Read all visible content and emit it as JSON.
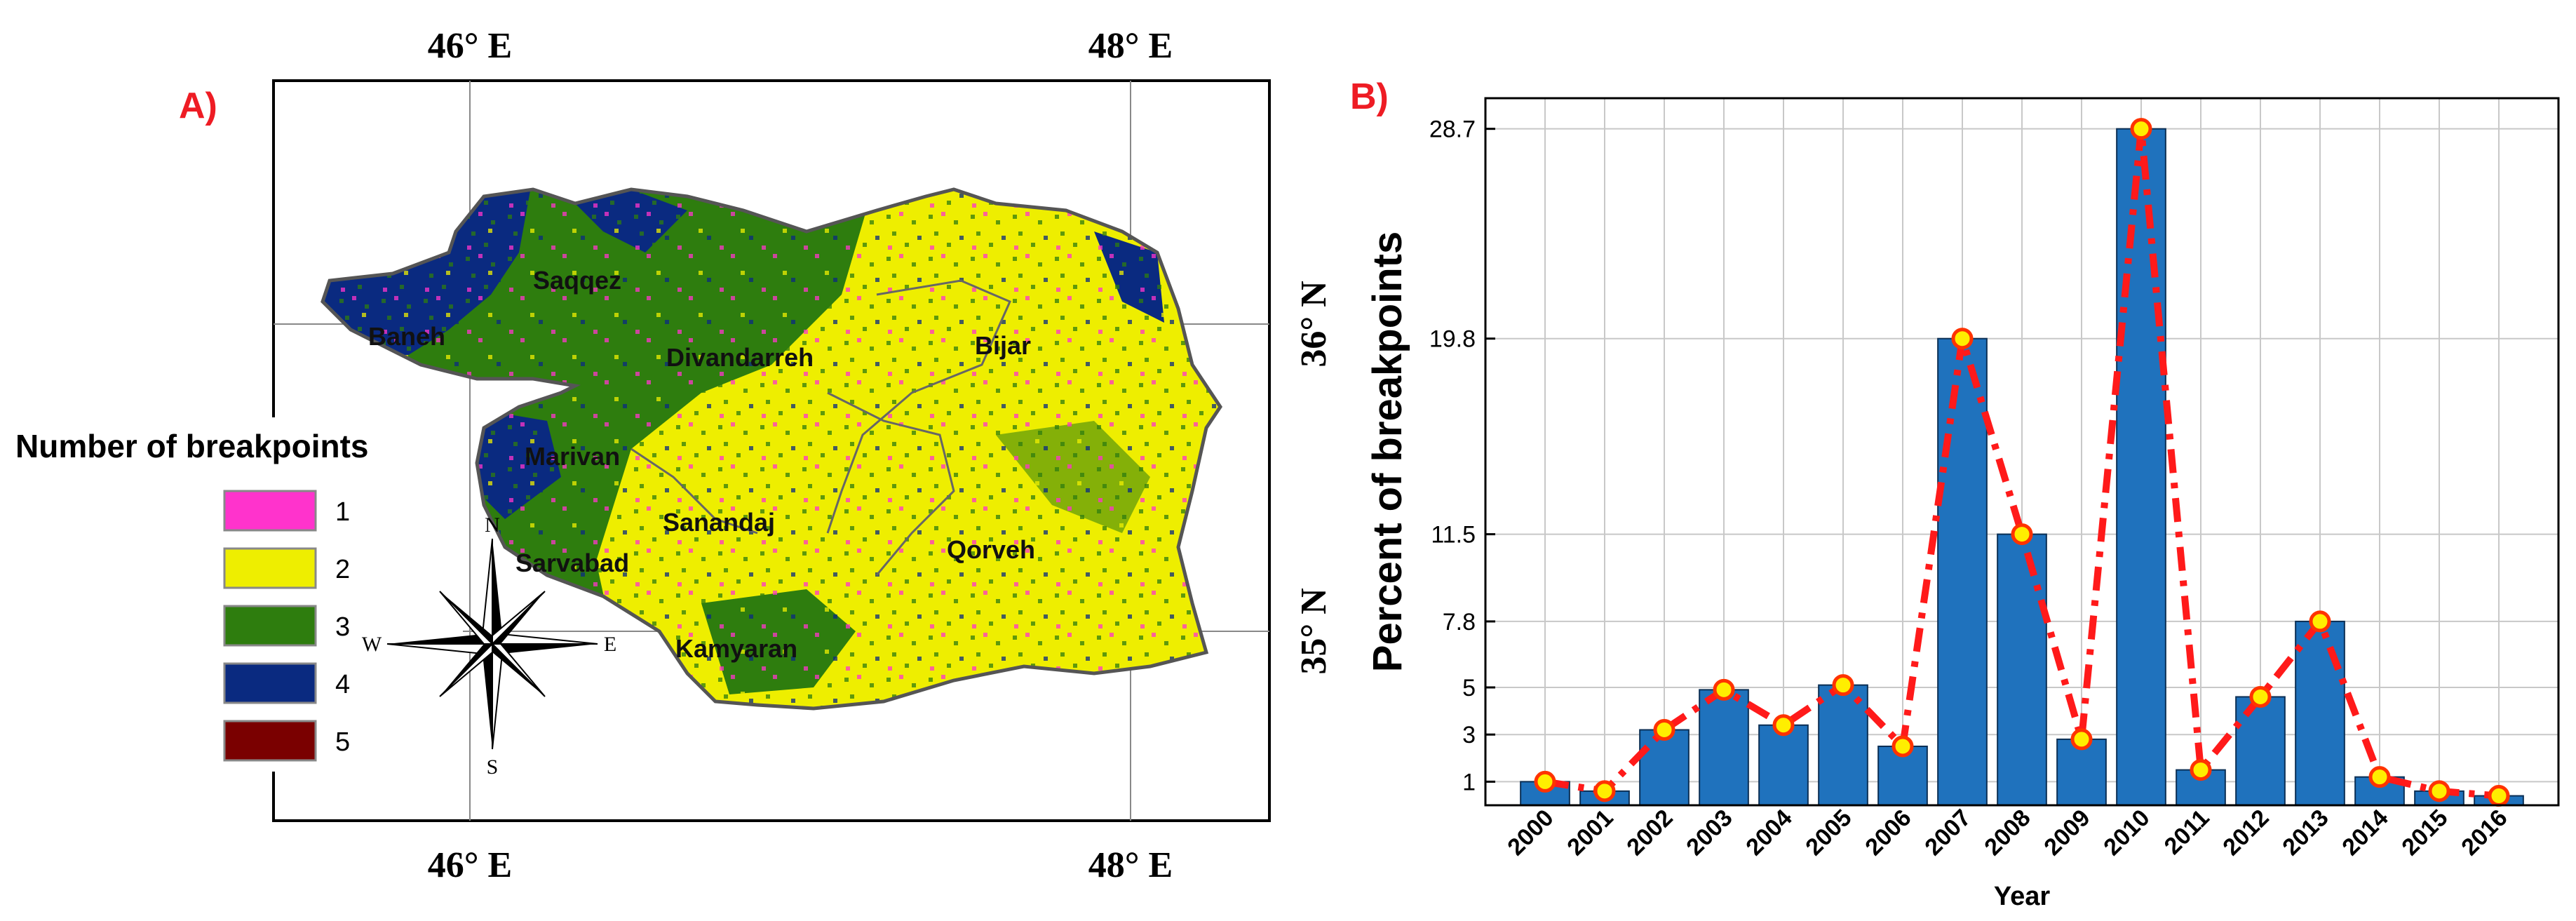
{
  "panel_a": {
    "label": "A)",
    "lon_labels": [
      "46° E",
      "48° E"
    ],
    "lat_labels": [
      "36° N",
      "35° N"
    ],
    "cities": [
      "Saqqez",
      "Baneh",
      "Divandarreh",
      "Bijar",
      "Marivan",
      "Sanandaj",
      "Sarvabad",
      "Qorveh",
      "Kamyaran"
    ],
    "legend": {
      "title": "Number of breakpoints",
      "items": [
        {
          "label": "1",
          "color": "#ff33cc"
        },
        {
          "label": "2",
          "color": "#eeee00"
        },
        {
          "label": "3",
          "color": "#2e7d0e"
        },
        {
          "label": "4",
          "color": "#0a2a80"
        },
        {
          "label": "5",
          "color": "#7a0000"
        }
      ]
    },
    "compass": {
      "n": "N",
      "s": "S",
      "e": "E",
      "w": "W"
    }
  },
  "panel_b": {
    "label": "B)",
    "colors": {
      "bar": "#1f72bd",
      "line": "#ff1a1a",
      "marker": "#ffee00",
      "label": "#ee1c24"
    }
  },
  "chart_data": {
    "type": "bar",
    "title": "",
    "xlabel": "Year",
    "ylabel": "Percent of breakpoints",
    "categories": [
      "2000",
      "2001",
      "2002",
      "2003",
      "2004",
      "2005",
      "2006",
      "2007",
      "2008",
      "2009",
      "2010",
      "2011",
      "2012",
      "2013",
      "2014",
      "2015",
      "2016"
    ],
    "series": [
      {
        "name": "bars",
        "type": "bar",
        "values": [
          1.0,
          0.6,
          3.2,
          4.9,
          3.4,
          5.1,
          2.5,
          19.8,
          11.5,
          2.8,
          28.7,
          1.5,
          4.6,
          7.8,
          1.2,
          0.6,
          0.4
        ]
      },
      {
        "name": "trend",
        "type": "line",
        "values": [
          1.0,
          0.6,
          3.2,
          4.9,
          3.4,
          5.1,
          2.5,
          19.8,
          11.5,
          2.8,
          28.7,
          1.5,
          4.6,
          7.8,
          1.2,
          0.6,
          0.4
        ]
      }
    ],
    "yticks": [
      1,
      3,
      5,
      7.8,
      11.5,
      19.8,
      28.7
    ],
    "ytick_labels": [
      "1",
      "3",
      "5",
      "7.8",
      "11.5",
      "19.8",
      "28.7"
    ],
    "ylim": [
      0,
      30
    ],
    "grid": true
  }
}
